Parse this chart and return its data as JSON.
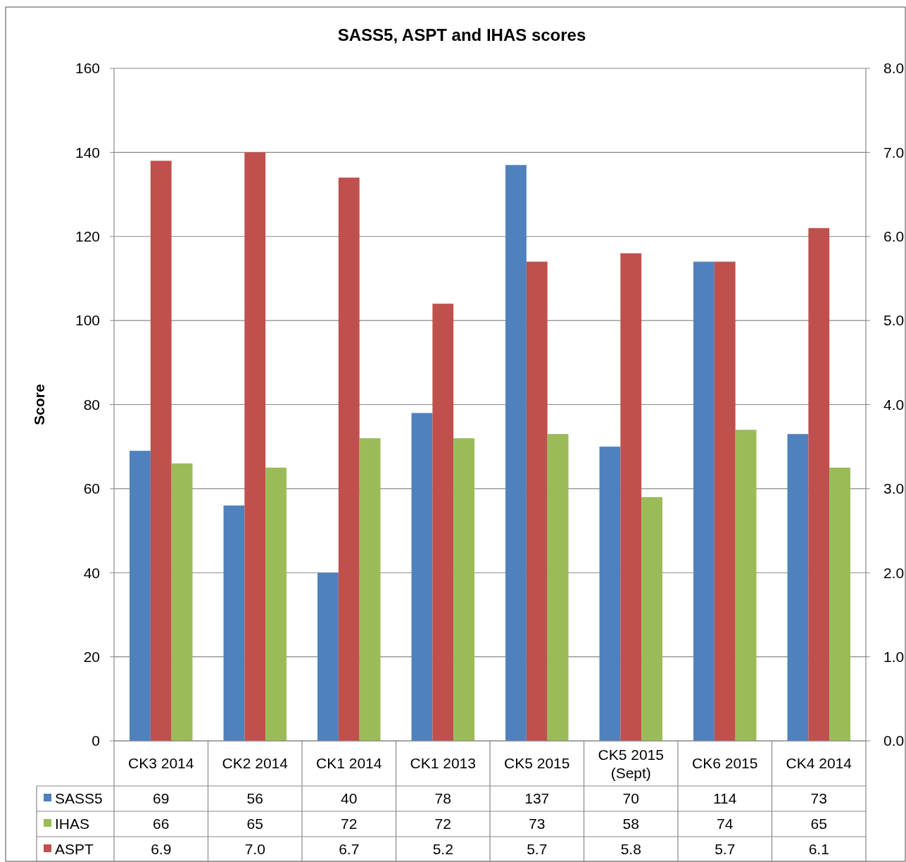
{
  "chart_data": {
    "type": "bar",
    "title": "SASS5,  ASPT  and IHAS  scores",
    "ylabel": "Score",
    "categories": [
      "CK3 2014",
      "CK2 2014",
      "CK1 2014",
      "CK1 2013",
      "CK5 2015",
      "CK5 2015 (Sept)",
      "CK6 2015",
      "CK4 2014"
    ],
    "series": [
      {
        "name": "SASS5",
        "color": "#4f81bd",
        "values": [
          69,
          56,
          40,
          78,
          137,
          70,
          114,
          73
        ],
        "value_labels": [
          "69",
          "56",
          "40",
          "78",
          "137",
          "70",
          "114",
          "73"
        ]
      },
      {
        "name": "ASPT",
        "color": "#c0504d",
        "axis": "y2",
        "values": [
          6.9,
          7.0,
          6.7,
          5.2,
          5.7,
          5.8,
          5.7,
          6.1
        ],
        "value_labels": [
          "6.9",
          "7.0",
          "6.7",
          "5.2",
          "5.7",
          "5.8",
          "5.7",
          "6.1"
        ]
      },
      {
        "name": "IHAS",
        "color": "#9bbb59",
        "values": [
          66,
          65,
          72,
          72,
          73,
          58,
          74,
          65
        ],
        "value_labels": [
          "66",
          "65",
          "72",
          "72",
          "73",
          "58",
          "74",
          "65"
        ]
      }
    ],
    "ylim": [
      0,
      160
    ],
    "yticks": [
      0,
      20,
      40,
      60,
      80,
      100,
      120,
      140,
      160
    ],
    "y2lim": [
      0,
      8
    ],
    "y2ticks": [
      {
        "value": 0,
        "label": "0.0"
      },
      {
        "value": 1,
        "label": "1.0"
      },
      {
        "value": 2,
        "label": "2.0"
      },
      {
        "value": 3,
        "label": "3.0"
      },
      {
        "value": 4,
        "label": "4.0"
      },
      {
        "value": 5,
        "label": "5.0"
      },
      {
        "value": 6,
        "label": "6.0"
      },
      {
        "value": 7,
        "label": "7.0"
      },
      {
        "value": 8,
        "label": "8.0"
      }
    ],
    "grid": "y",
    "legend": "bottom"
  }
}
